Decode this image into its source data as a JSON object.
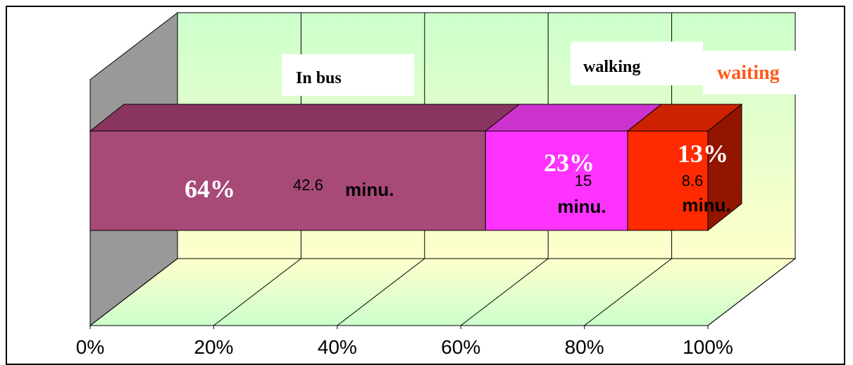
{
  "chart_data": {
    "type": "bar",
    "orientation": "horizontal",
    "stacked": "100%",
    "three_d": true,
    "categories": [
      ""
    ],
    "series": [
      {
        "name": "In bus",
        "values": [
          64
        ],
        "label_pct": "64%",
        "label_value": "42.6",
        "label_unit": "minu.",
        "color": "#a84a78",
        "top_color": "#8a3560",
        "side_color": "#7a2d55",
        "name_color": "#000000"
      },
      {
        "name": "walking",
        "values": [
          23
        ],
        "label_pct": "23%",
        "label_value": "15",
        "label_unit": "minu.",
        "color": "#ff33ff",
        "top_color": "#cc33cc",
        "side_color": "#b024b0",
        "name_color": "#000000"
      },
      {
        "name": "waiting",
        "values": [
          13
        ],
        "label_pct": "13%",
        "label_value": "8.6",
        "label_unit": "minu.",
        "color": "#ff2a00",
        "top_color": "#cc2200",
        "side_color": "#921500",
        "name_color": "#ff5a1a"
      }
    ],
    "xticks": [
      "0%",
      "20%",
      "40%",
      "60%",
      "80%",
      "100%"
    ],
    "xlim": [
      0,
      100
    ],
    "grid": true,
    "wall_color": "#ccffcc",
    "floor_color": "#ffffcc",
    "side_wall_color": "#999999"
  }
}
